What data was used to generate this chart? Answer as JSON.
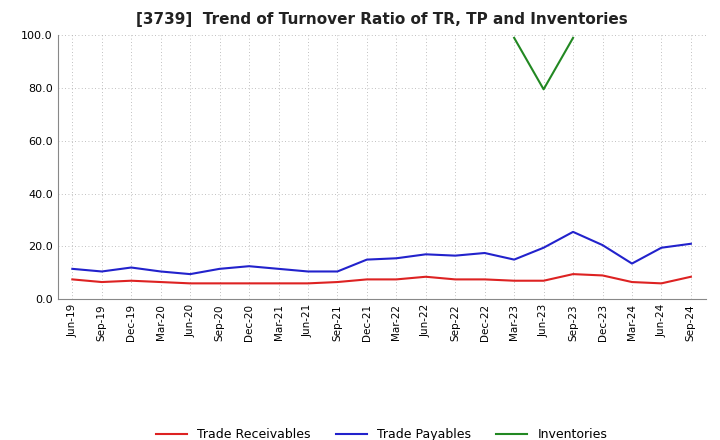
{
  "title": "[3739]  Trend of Turnover Ratio of TR, TP and Inventories",
  "xlabels": [
    "Jun-19",
    "Sep-19",
    "Dec-19",
    "Mar-20",
    "Jun-20",
    "Sep-20",
    "Dec-20",
    "Mar-21",
    "Jun-21",
    "Sep-21",
    "Dec-21",
    "Mar-22",
    "Jun-22",
    "Sep-22",
    "Dec-22",
    "Mar-23",
    "Jun-23",
    "Sep-23",
    "Dec-23",
    "Mar-24",
    "Jun-24",
    "Sep-24"
  ],
  "trade_receivables": [
    7.5,
    6.5,
    7.0,
    6.5,
    6.0,
    6.0,
    6.0,
    6.0,
    6.0,
    6.5,
    7.5,
    7.5,
    8.5,
    7.5,
    7.5,
    7.0,
    7.0,
    9.5,
    9.0,
    6.5,
    6.0,
    8.5
  ],
  "trade_payables": [
    11.5,
    10.5,
    12.0,
    10.5,
    9.5,
    11.5,
    12.5,
    11.5,
    10.5,
    10.5,
    15.0,
    15.5,
    17.0,
    16.5,
    17.5,
    15.0,
    19.5,
    25.5,
    20.5,
    13.5,
    19.5,
    21.0
  ],
  "inventories": [
    null,
    null,
    null,
    null,
    null,
    null,
    null,
    null,
    null,
    null,
    null,
    null,
    null,
    null,
    null,
    99.0,
    79.5,
    99.0,
    null,
    null,
    null,
    null
  ],
  "ylim": [
    0.0,
    100.0
  ],
  "yticks": [
    0.0,
    20.0,
    40.0,
    60.0,
    80.0,
    100.0
  ],
  "tr_color": "#dd2222",
  "tp_color": "#2222cc",
  "inv_color": "#228822",
  "bg_color": "#ffffff",
  "grid_color": "#888888",
  "title_fontsize": 11,
  "legend_labels": [
    "Trade Receivables",
    "Trade Payables",
    "Inventories"
  ],
  "figsize": [
    7.2,
    4.4
  ],
  "dpi": 100
}
